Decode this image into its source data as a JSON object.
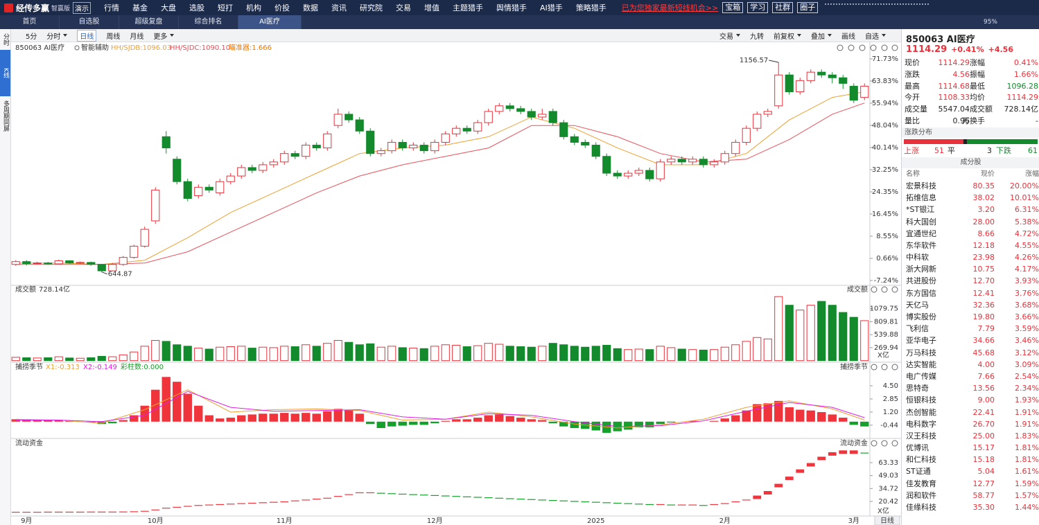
{
  "menu": {
    "logo": "经传多赢",
    "edition": "智赢版",
    "demo": "演示",
    "items": [
      "行情",
      "基金",
      "大盘",
      "选股",
      "短打",
      "机构",
      "价投",
      "数据",
      "资讯",
      "研究院",
      "交易",
      "增值",
      "主题猎手",
      "舆情猎手",
      "AI猎手",
      "策略猎手"
    ],
    "promo": "已为您独家最新短线机会>>",
    "buttons": [
      "宝箱",
      "学习",
      "社群",
      "圈子"
    ]
  },
  "tabs": {
    "items": [
      "首页",
      "自选股",
      "超级复盘",
      "综合排名",
      "AI医疗"
    ],
    "zoom": "95%"
  },
  "toolbar": {
    "left": [
      "5分",
      "分时",
      "日线",
      "周线",
      "月线",
      "更多"
    ],
    "right": [
      "交易",
      "九转",
      "前复权",
      "叠加",
      "画线",
      "自选"
    ]
  },
  "sidebar": [
    "分时",
    "K线",
    "多周期同屏"
  ],
  "chart_data": [
    {
      "type": "candlestick",
      "title": "850063 AI医疗",
      "assist": "智能辅助",
      "aim": "瞄准器:1.666",
      "aim_color": "#f07800",
      "up_color": "#e8313a",
      "down_color": "#138a2c",
      "high_label": "1156.57",
      "low_label": "644.87",
      "ylim": [
        -7.24,
        71.73
      ],
      "yticks": [
        {
          "value": 71.73,
          "label": "71.73%"
        },
        {
          "value": 63.83,
          "label": "63.83%"
        },
        {
          "value": 55.94,
          "label": "55.94%"
        },
        {
          "value": 48.04,
          "label": "48.04%"
        },
        {
          "value": 40.14,
          "label": "40.14%"
        },
        {
          "value": 32.25,
          "label": "32.25%"
        },
        {
          "value": 24.35,
          "label": "24.35%"
        },
        {
          "value": 16.45,
          "label": "16.45%"
        },
        {
          "value": 8.55,
          "label": "8.55%"
        },
        {
          "value": 0.66,
          "label": "0.66%"
        },
        {
          "value": -7.24,
          "label": "-7.24%"
        }
      ],
      "ohlc": [
        [
          -1.5,
          -0.5,
          0,
          -2
        ],
        [
          -0.5,
          -1.2,
          0,
          -1.8
        ],
        [
          -1.2,
          -1.0,
          -0.5,
          -1.5
        ],
        [
          -1.0,
          -1.3,
          -0.6,
          -1.6
        ],
        [
          -1.3,
          -0.2,
          0.2,
          -1.5
        ],
        [
          -0.2,
          -1.0,
          0,
          -1.3
        ],
        [
          -1.0,
          -0.8,
          -0.5,
          -1.3
        ],
        [
          -0.8,
          -1.5,
          -0.5,
          -2
        ],
        [
          -1.5,
          -3.8,
          -1.3,
          -4.2
        ],
        [
          -3.8,
          -1.5,
          -1,
          -4
        ],
        [
          -1.5,
          1,
          1.5,
          -2
        ],
        [
          1,
          5,
          5.5,
          0.5
        ],
        [
          5,
          11,
          12,
          4.5
        ],
        [
          14,
          25,
          26,
          13
        ],
        [
          44,
          40,
          46,
          38
        ],
        [
          36,
          28,
          37,
          27
        ],
        [
          28,
          22,
          29,
          21
        ],
        [
          23,
          26,
          27,
          22
        ],
        [
          26,
          25,
          27,
          24
        ],
        [
          24,
          28,
          29,
          23
        ],
        [
          28,
          30,
          31,
          27
        ],
        [
          30,
          33,
          34,
          29
        ],
        [
          33,
          32,
          34,
          31
        ],
        [
          32,
          34,
          35,
          31
        ],
        [
          34,
          35,
          36,
          33
        ],
        [
          35,
          38,
          39,
          34
        ],
        [
          38,
          37,
          39,
          36
        ],
        [
          37,
          41,
          42,
          36
        ],
        [
          41,
          40,
          42,
          39
        ],
        [
          40,
          45,
          46,
          39
        ],
        [
          48,
          52,
          54,
          47
        ],
        [
          52,
          50,
          53,
          49
        ],
        [
          50,
          46,
          51,
          45
        ],
        [
          46,
          38,
          47,
          37
        ],
        [
          38,
          39,
          40,
          37
        ],
        [
          39,
          42,
          43,
          38
        ],
        [
          42,
          40,
          43,
          39
        ],
        [
          40,
          41,
          42,
          39
        ],
        [
          41,
          39,
          42,
          38
        ],
        [
          39,
          42,
          43,
          38
        ],
        [
          42,
          45,
          46,
          41
        ],
        [
          45,
          47,
          48,
          44
        ],
        [
          47,
          46,
          48,
          45
        ],
        [
          46,
          49,
          50,
          45
        ],
        [
          49,
          53,
          54,
          48
        ],
        [
          53,
          55,
          56,
          52
        ],
        [
          55,
          54,
          56,
          53
        ],
        [
          54,
          53,
          55,
          52
        ],
        [
          53,
          51,
          54,
          50
        ],
        [
          51,
          52,
          54,
          50
        ],
        [
          53,
          49,
          54,
          48
        ],
        [
          49,
          44,
          50,
          43
        ],
        [
          44,
          42,
          45,
          41
        ],
        [
          42,
          41,
          43,
          40
        ],
        [
          41,
          37,
          42,
          36
        ],
        [
          37,
          31,
          38,
          30
        ],
        [
          31,
          30,
          32,
          29
        ],
        [
          30,
          31,
          32,
          29
        ],
        [
          31,
          32,
          33,
          30
        ],
        [
          32,
          29,
          33,
          28
        ],
        [
          29,
          35,
          36,
          28
        ],
        [
          35,
          36,
          37,
          34
        ],
        [
          36,
          35,
          37,
          34
        ],
        [
          35,
          36,
          37,
          34
        ],
        [
          36,
          34,
          37,
          33
        ],
        [
          34,
          35,
          36,
          33
        ],
        [
          35,
          38,
          39,
          34
        ],
        [
          38,
          42,
          43,
          37
        ],
        [
          42,
          47,
          48,
          41
        ],
        [
          47,
          52,
          53,
          46
        ],
        [
          52,
          53,
          54,
          51
        ],
        [
          55,
          66,
          70.5,
          54
        ],
        [
          66,
          60,
          67,
          59
        ],
        [
          60,
          64,
          65,
          59
        ],
        [
          64,
          67,
          68,
          63
        ],
        [
          67,
          66,
          68,
          65
        ],
        [
          66,
          65,
          67,
          63
        ],
        [
          65,
          63,
          66,
          61
        ],
        [
          62,
          57,
          63,
          56
        ],
        [
          58,
          62,
          63,
          57
        ]
      ],
      "series": [
        {
          "name": "HH/SJDB:1096.03",
          "color": "#f0a030",
          "x": [
            0,
            4,
            8,
            12,
            16,
            20,
            24,
            28,
            32,
            36,
            40,
            44,
            48,
            52,
            56,
            60,
            64,
            68,
            72,
            76,
            79
          ],
          "values": [
            -1,
            -1,
            -1.5,
            0,
            8,
            17,
            24,
            31,
            38,
            40,
            41,
            44,
            51,
            47,
            40,
            34,
            34,
            38,
            50,
            58,
            60
          ]
        },
        {
          "name": "HH/SJDC:1090.10",
          "color": "#e8505a",
          "x": [
            0,
            4,
            8,
            12,
            16,
            20,
            24,
            28,
            32,
            36,
            40,
            44,
            48,
            52,
            56,
            60,
            64,
            68,
            72,
            76,
            79
          ],
          "values": [
            -1.5,
            -1.5,
            -1.5,
            -1,
            3,
            10,
            17,
            24,
            30,
            34,
            37,
            40,
            48,
            48,
            44,
            38,
            35,
            36,
            43,
            52,
            56
          ]
        }
      ]
    },
    {
      "type": "bar",
      "title": "成交额",
      "value_label": "728.14亿",
      "unit": "X亿",
      "ylim": [
        0,
        1390
      ],
      "yticks": [
        269.94,
        539.88,
        809.81,
        1079.75
      ],
      "values": [
        70,
        60,
        55,
        60,
        80,
        55,
        50,
        60,
        90,
        80,
        120,
        180,
        300,
        420,
        400,
        330,
        300,
        260,
        240,
        280,
        290,
        300,
        260,
        280,
        270,
        300,
        290,
        330,
        300,
        360,
        420,
        380,
        330,
        350,
        280,
        300,
        270,
        260,
        250,
        300,
        330,
        320,
        290,
        310,
        360,
        340,
        300,
        290,
        280,
        300,
        360,
        330,
        300,
        280,
        300,
        320,
        250,
        230,
        240,
        230,
        300,
        270,
        240,
        230,
        220,
        230,
        280,
        330,
        400,
        480,
        450,
        1330,
        1150,
        1050,
        1150,
        1230,
        1150,
        1000,
        900,
        830
      ]
    },
    {
      "type": "macd",
      "title": "捕捞季节",
      "bars_label": "彩柱数:0.000",
      "bars_color": "#1c9a2c",
      "ylim": [
        -1.84,
        5.97
      ],
      "yticks": [
        {
          "value": 4.5,
          "label": "4.50"
        },
        2.85,
        {
          "value": 1.2,
          "label": "1.20"
        },
        -0.44
      ],
      "values": [
        0.3,
        0.3,
        0.2,
        0.2,
        0.2,
        0.1,
        0,
        -0.1,
        -0.3,
        -0.2,
        0.2,
        0.8,
        2,
        4,
        5.6,
        5,
        3.5,
        2,
        0.8,
        0.4,
        0.5,
        0.8,
        0.9,
        1,
        1,
        1.1,
        1,
        1.1,
        1,
        1.3,
        1.6,
        1.5,
        1,
        -0.3,
        -0.8,
        -0.6,
        -0.5,
        -0.4,
        -0.4,
        -0.2,
        0.1,
        0.3,
        0.3,
        0.5,
        0.8,
        0.9,
        0.7,
        0.5,
        0.3,
        0.2,
        -0.2,
        -0.6,
        -0.8,
        -0.9,
        -1.1,
        -1.4,
        -1.2,
        -1,
        -0.7,
        -0.7,
        -0.3,
        -0.1,
        0,
        0.1,
        0,
        0.1,
        0.4,
        0.8,
        1.4,
        2.2,
        2.3,
        2.6,
        1.8,
        1.5,
        1.4,
        1.2,
        0.9,
        0.5,
        -0.4,
        -0.6
      ],
      "series": [
        {
          "name": "X1:-0.313",
          "color": "#f0a030",
          "x": [
            0,
            4,
            8,
            12,
            16,
            20,
            24,
            28,
            32,
            36,
            40,
            44,
            48,
            52,
            56,
            60,
            64,
            68,
            72,
            76,
            79
          ],
          "values": [
            0.3,
            0.2,
            -0.2,
            1.5,
            4,
            1.2,
            1.5,
            1.6,
            1.4,
            0.2,
            0.3,
            1.2,
            0.6,
            -0.3,
            -0.8,
            -0.4,
            0.3,
            1.8,
            2.6,
            1.6,
            0.2
          ]
        },
        {
          "name": "X2:-0.149",
          "color": "#e020e0",
          "x": [
            0,
            4,
            8,
            12,
            16,
            20,
            24,
            28,
            32,
            36,
            40,
            44,
            48,
            52,
            56,
            60,
            64,
            68,
            72,
            76,
            79
          ],
          "values": [
            0.2,
            0.2,
            0,
            0.8,
            3.8,
            1.8,
            1.3,
            1.4,
            1.5,
            0.6,
            0.3,
            1,
            0.8,
            0,
            -0.6,
            -0.5,
            0.1,
            1.3,
            2.4,
            1.8,
            0.5
          ]
        }
      ]
    },
    {
      "type": "line",
      "title": "流动资金",
      "unit": "X亿",
      "period": "日线",
      "ylim": [
        4.3,
        84.8
      ],
      "yticks": [
        63.33,
        49.03,
        34.72,
        20.42
      ],
      "categories": [
        null,
        "9月",
        null,
        null,
        null,
        null,
        null,
        null,
        null,
        null,
        null,
        null,
        null,
        "10月",
        null,
        null,
        null,
        null,
        null,
        null,
        null,
        null,
        null,
        null,
        null,
        "11月",
        null,
        null,
        null,
        null,
        null,
        null,
        null,
        null,
        null,
        null,
        null,
        null,
        null,
        "12月",
        null,
        null,
        null,
        null,
        null,
        null,
        null,
        null,
        null,
        null,
        null,
        null,
        null,
        null,
        "2025",
        null,
        null,
        null,
        null,
        null,
        null,
        null,
        null,
        null,
        null,
        null,
        "2月",
        null,
        null,
        null,
        null,
        null,
        null,
        null,
        null,
        null,
        null,
        null,
        "3月",
        null
      ],
      "values": [
        8.5,
        8.5,
        8.5,
        8.6,
        8.6,
        8.6,
        8.6,
        8.7,
        8.7,
        8.7,
        8.8,
        9,
        9.5,
        11,
        13,
        14,
        15,
        16,
        16.5,
        17,
        17.5,
        18,
        18.5,
        19,
        19.5,
        20,
        21,
        22,
        23,
        24,
        26,
        28,
        30,
        30,
        29.5,
        29,
        28.5,
        28,
        27.5,
        27,
        26.5,
        26,
        25.5,
        25,
        24.5,
        24,
        23.5,
        23,
        22.5,
        22,
        21.5,
        21,
        20.5,
        20,
        19.5,
        19,
        18.5,
        18,
        17.5,
        17,
        17,
        16.5,
        16.5,
        16.5,
        16,
        17,
        18,
        20,
        22,
        25,
        30,
        38,
        46,
        54,
        61,
        68,
        73,
        75,
        75,
        74
      ]
    }
  ],
  "quote": {
    "code_name": "850063 AI医疗",
    "price": "1114.29",
    "change_pct": "+0.41%",
    "change": "+4.56",
    "rows": [
      [
        "现价",
        "1114.29",
        "涨幅",
        "0.41%"
      ],
      [
        "涨跌",
        "4.56",
        "振幅",
        "1.66%"
      ],
      [
        "最高",
        "1114.68",
        "最低",
        "1096.28"
      ],
      [
        "今开",
        "1108.33",
        "均价",
        "1114.29"
      ],
      [
        "成交量",
        "5547.04万",
        "成交额",
        "728.14亿"
      ],
      [
        "量比",
        "0.96",
        "换手",
        "-"
      ]
    ]
  },
  "breadth": {
    "title": "涨跌分布",
    "up_label": "上涨",
    "up": 51,
    "flat_label": "平",
    "flat": 3,
    "down_label": "下跌",
    "down": 61
  },
  "components": {
    "title": "成分股",
    "header": [
      "名称",
      "现价",
      "涨幅"
    ],
    "rows": [
      [
        "宏景科技",
        "80.35",
        "20.00%"
      ],
      [
        "拓维信息",
        "38.02",
        "10.01%"
      ],
      [
        "*ST银江",
        "3.20",
        "6.31%"
      ],
      [
        "科大国创",
        "28.00",
        "5.38%"
      ],
      [
        "宜通世纪",
        "8.66",
        "4.72%"
      ],
      [
        "东华软件",
        "12.18",
        "4.55%"
      ],
      [
        "中科软",
        "23.98",
        "4.26%"
      ],
      [
        "浙大网新",
        "10.75",
        "4.17%"
      ],
      [
        "共进股份",
        "12.70",
        "3.93%"
      ],
      [
        "东方国信",
        "12.41",
        "3.76%"
      ],
      [
        "天亿马",
        "32.36",
        "3.68%"
      ],
      [
        "博实股份",
        "19.80",
        "3.66%"
      ],
      [
        "飞利信",
        "7.79",
        "3.59%"
      ],
      [
        "亚华电子",
        "34.66",
        "3.46%"
      ],
      [
        "万马科技",
        "45.68",
        "3.12%"
      ],
      [
        "达实智能",
        "4.00",
        "3.09%"
      ],
      [
        "电广传媒",
        "7.66",
        "2.54%"
      ],
      [
        "思特奇",
        "13.56",
        "2.34%"
      ],
      [
        "恒银科技",
        "9.00",
        "1.93%"
      ],
      [
        "杰创智能",
        "22.41",
        "1.91%"
      ],
      [
        "电科数字",
        "26.70",
        "1.91%"
      ],
      [
        "汉王科技",
        "25.00",
        "1.83%"
      ],
      [
        "优博讯",
        "15.17",
        "1.81%"
      ],
      [
        "和仁科技",
        "15.18",
        "1.81%"
      ],
      [
        "ST证通",
        "5.04",
        "1.61%"
      ],
      [
        "佳发教育",
        "12.77",
        "1.59%"
      ],
      [
        "润和软件",
        "58.77",
        "1.57%"
      ],
      [
        "佳缘科技",
        "35.30",
        "1.44%"
      ]
    ]
  }
}
